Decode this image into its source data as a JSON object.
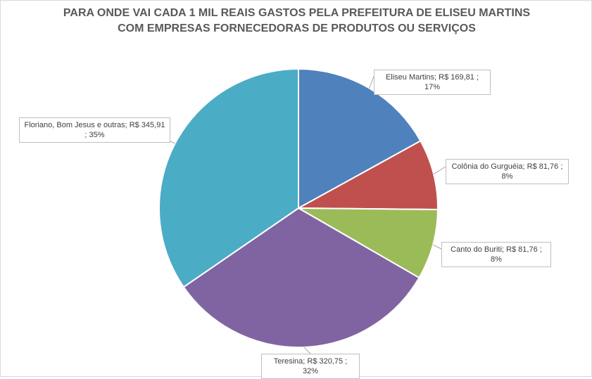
{
  "chart_data": {
    "type": "pie",
    "title_lines": [
      "PARA ONDE VAI CADA 1 MIL REAIS GASTOS PELA PREFEITURA DE ELISEU MARTINS",
      "COM EMPRESAS FORNECEDORAS DE PRODUTOS OU SERVIÇOS"
    ],
    "slices": [
      {
        "name": "Eliseu Martins",
        "value": 169.81,
        "percent": 17,
        "label": "Eliseu Martins;  R$ 169,81 ; 17%",
        "color": "#4F81BD"
      },
      {
        "name": "Colônia do Gurguéia",
        "value": 81.76,
        "percent": 8,
        "label": "Colônia do Gurguéia;  R$ 81,76 ; 8%",
        "color": "#C0504D"
      },
      {
        "name": "Canto do Buriti",
        "value": 81.76,
        "percent": 8,
        "label": "Canto do Buriti;  R$ 81,76 ; 8%",
        "color": "#9BBB59"
      },
      {
        "name": "Teresina",
        "value": 320.75,
        "percent": 32,
        "label": "Teresina;  R$ 320,75 ; 32%",
        "color": "#8064A2"
      },
      {
        "name": "Floriano, Bom Jesus e outras",
        "value": 345.91,
        "percent": 35,
        "label": "Floriano, Bom Jesus e outras;  R$ 345,91 ; 35%",
        "color": "#4BACC6"
      }
    ],
    "start_angle_deg": 0,
    "direction": "clockwise",
    "legend": "none"
  }
}
